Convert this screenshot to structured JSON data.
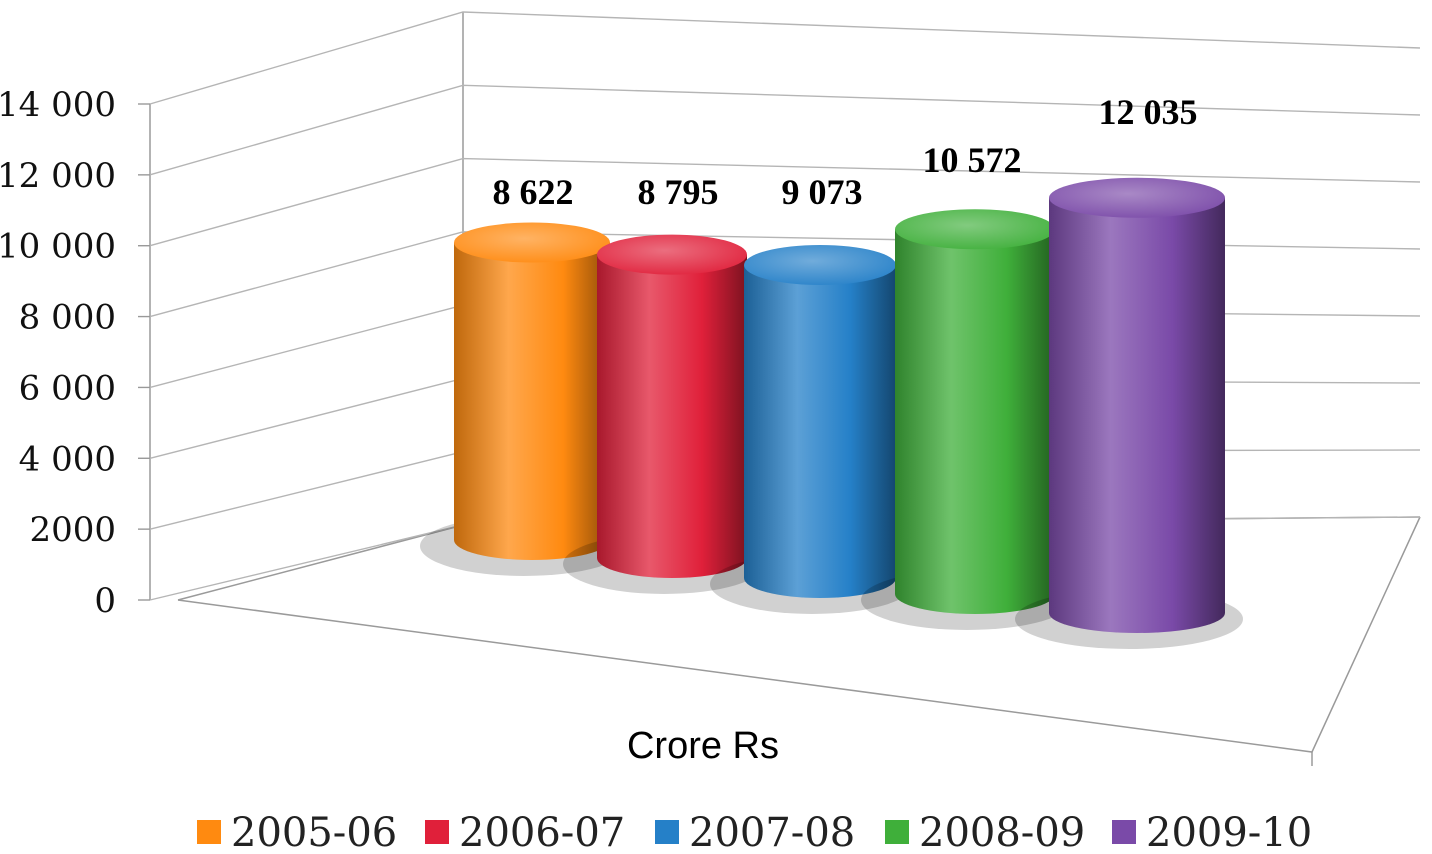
{
  "chart_data": {
    "type": "bar",
    "style": "3d-cylinder",
    "categories": [
      "2005-06",
      "2006-07",
      "2007-08",
      "2008-09",
      "2009-10"
    ],
    "values": [
      8622,
      8795,
      9073,
      10572,
      12035
    ],
    "value_labels": [
      "8 622",
      "8 795",
      "9 073",
      "10 572",
      "12 035"
    ],
    "colors": [
      "#ff8a10",
      "#e0203a",
      "#2580c8",
      "#3faf3a",
      "#7a4aa8"
    ],
    "xlabel": "Crore Rs",
    "ylim": [
      0,
      14000
    ],
    "y_ticks": [
      {
        "value": 0,
        "label": "0"
      },
      {
        "value": 2000,
        "label": "2000"
      },
      {
        "value": 4000,
        "label": "4 000"
      },
      {
        "value": 6000,
        "label": "6 000"
      },
      {
        "value": 8000,
        "label": "8 000"
      },
      {
        "value": 10000,
        "label": "10 000"
      },
      {
        "value": 12000,
        "label": "12 000"
      },
      {
        "value": 14000,
        "label": "14 000"
      }
    ],
    "grid": true,
    "legend_position": "bottom"
  }
}
